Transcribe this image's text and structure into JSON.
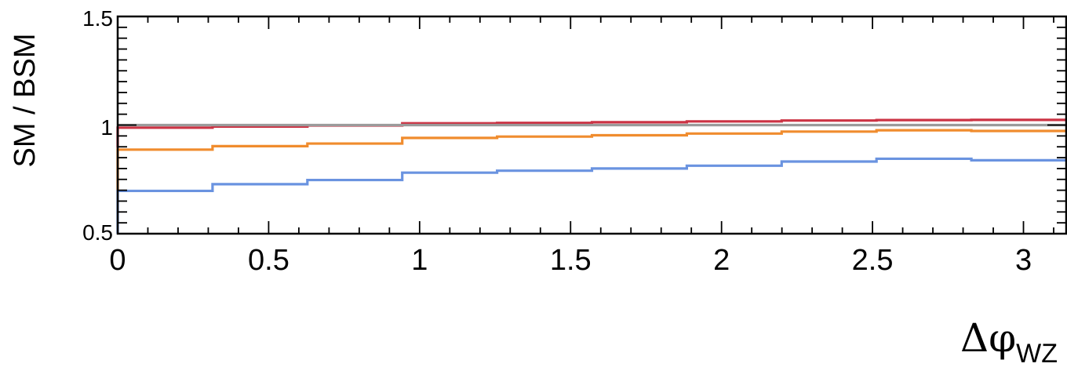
{
  "chart_data": {
    "type": "line",
    "style": "step",
    "xlabel": {
      "symbol": "Δφ",
      "subscript": "WZ"
    },
    "ylabel": "SM / BSM",
    "xlim": [
      0,
      3.14159
    ],
    "ylim": [
      0.5,
      1.5
    ],
    "x_ticks": [
      "0",
      "0.5",
      "1",
      "1.5",
      "2",
      "2.5",
      "3"
    ],
    "x_tick_values": [
      0,
      0.5,
      1,
      1.5,
      2,
      2.5,
      3
    ],
    "y_ticks": [
      "0.5",
      "1",
      "1.5"
    ],
    "y_tick_values": [
      0.5,
      1,
      1.5
    ],
    "bin_edges": [
      0,
      0.31416,
      0.62832,
      0.94248,
      1.25664,
      1.5708,
      1.88496,
      2.19911,
      2.51327,
      2.82743,
      3.14159
    ],
    "grid": false,
    "series": [
      {
        "color": "#cc3344",
        "values": [
          0.988,
          0.993,
          0.998,
          1.008,
          1.01,
          1.013,
          1.017,
          1.021,
          1.023,
          1.024
        ],
        "start_value": 0.895
      },
      {
        "color": "#f08c2e",
        "values": [
          0.887,
          0.903,
          0.915,
          0.941,
          0.947,
          0.953,
          0.961,
          0.97,
          0.976,
          0.973
        ],
        "start_value": 0.7
      },
      {
        "color": "#6a93e0",
        "values": [
          0.697,
          0.728,
          0.747,
          0.781,
          0.79,
          0.8,
          0.813,
          0.832,
          0.845,
          0.838
        ],
        "start_value": 0.5
      },
      {
        "color": "#9b9b9b",
        "values": [
          1.0,
          1.0,
          1.0,
          1.0,
          1.0,
          1.0,
          1.0,
          1.0,
          1.0,
          1.0
        ],
        "start_value": 1.0
      }
    ]
  }
}
